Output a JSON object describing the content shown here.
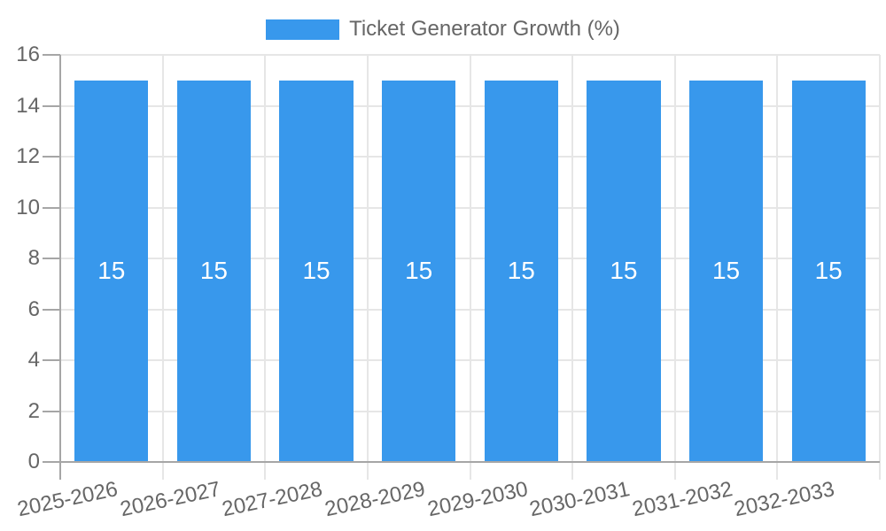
{
  "chart_data": {
    "type": "bar",
    "title": "",
    "legend": {
      "label": "Ticket Generator Growth (%)",
      "position": "top"
    },
    "categories": [
      "2025-2026",
      "2026-2027",
      "2027-2028",
      "2028-2029",
      "2029-2030",
      "2030-2031",
      "2031-2032",
      "2032-2033"
    ],
    "series": [
      {
        "name": "Ticket Generator Growth (%)",
        "values": [
          15,
          15,
          15,
          15,
          15,
          15,
          15,
          15
        ]
      }
    ],
    "value_labels_visible": true,
    "xlabel": "",
    "ylabel": "",
    "ylim": [
      0,
      16
    ],
    "yticks": [
      0,
      2,
      4,
      6,
      8,
      10,
      12,
      14,
      16
    ],
    "grid": true,
    "colors": {
      "bar": "#3898EC",
      "grid": "#E6E6E6",
      "axis": "#A6A6A6",
      "tick_label": "#666666",
      "legend_text": "#666666",
      "value_label": "#FFFFFF",
      "background": "#FFFFFF"
    }
  }
}
